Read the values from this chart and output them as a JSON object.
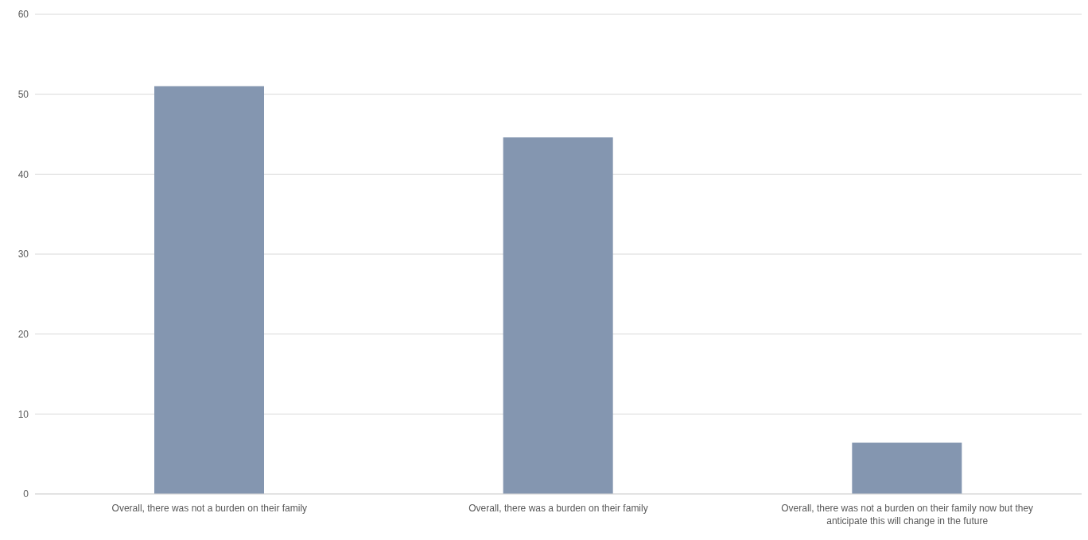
{
  "chart_data": {
    "type": "bar",
    "categories": [
      "Overall, there was not a burden on their family",
      "Overall, there was a burden on their family",
      "Overall, there was not a burden on their family now but they anticipate this will change in the future"
    ],
    "values": [
      51,
      44.6,
      6.4
    ],
    "color": "#8496b0",
    "ylim": [
      0,
      60
    ],
    "yticks": [
      0,
      10,
      20,
      30,
      40,
      50,
      60
    ],
    "grid": "y"
  }
}
